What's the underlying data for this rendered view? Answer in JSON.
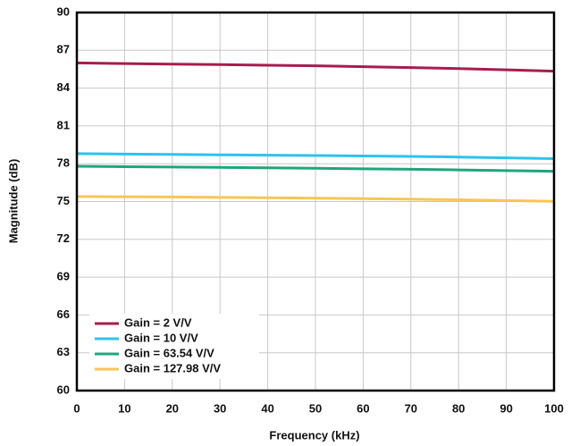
{
  "chart_data": {
    "type": "line",
    "x_label": "Frequency (kHz)",
    "y_label": "Magnitude (dB)",
    "x": [
      0,
      10,
      20,
      30,
      40,
      50,
      60,
      70,
      80,
      90,
      100
    ],
    "series": [
      {
        "name": "Gain = 2 V/V",
        "color": "#a81c4e",
        "values": [
          86.0,
          85.95,
          85.9,
          85.87,
          85.82,
          85.77,
          85.7,
          85.63,
          85.55,
          85.45,
          85.35
        ]
      },
      {
        "name": "Gain = 10 V/V",
        "color": "#2cc3f0",
        "values": [
          78.8,
          78.77,
          78.74,
          78.71,
          78.68,
          78.65,
          78.62,
          78.58,
          78.53,
          78.47,
          78.4
        ]
      },
      {
        "name": "Gain = 63.54 V/V",
        "color": "#1ea67c",
        "values": [
          77.8,
          77.77,
          77.74,
          77.71,
          77.68,
          77.64,
          77.6,
          77.56,
          77.51,
          77.46,
          77.4
        ]
      },
      {
        "name": "Gain = 127.98 V/V",
        "color": "#f7c654",
        "values": [
          75.4,
          75.38,
          75.36,
          75.33,
          75.3,
          75.27,
          75.23,
          75.19,
          75.14,
          75.08,
          75.02
        ]
      }
    ],
    "xlim": [
      0,
      100
    ],
    "xticks": [
      0,
      10,
      20,
      30,
      40,
      50,
      60,
      70,
      80,
      90,
      100
    ],
    "ylim": [
      60,
      90
    ],
    "yticks": [
      60,
      63,
      66,
      69,
      72,
      75,
      78,
      81,
      84,
      87,
      90
    ],
    "grid": true,
    "legend": "lower left"
  }
}
